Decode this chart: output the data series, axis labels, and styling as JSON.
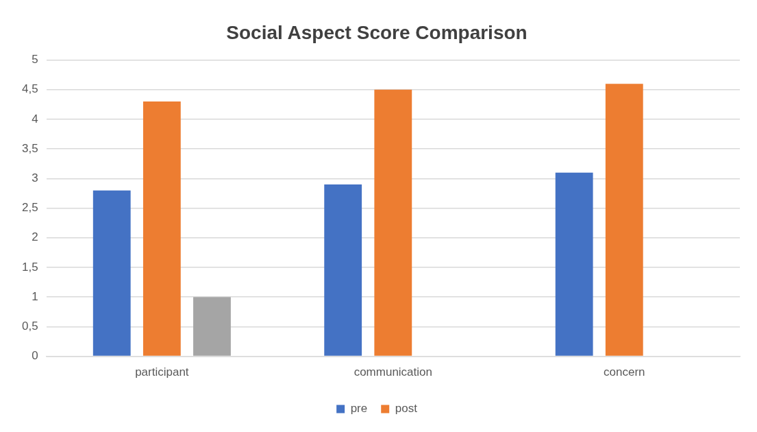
{
  "chart_data": {
    "type": "bar",
    "title": "Social Aspect Score Comparison",
    "categories": [
      "participant",
      "communication",
      "concern"
    ],
    "series": [
      {
        "name": "pre",
        "color": "#4472c4",
        "values": [
          2.8,
          2.9,
          3.1
        ]
      },
      {
        "name": "post",
        "color": "#ed7d31",
        "values": [
          4.3,
          4.5,
          4.6
        ]
      },
      {
        "color": "#a5a5a5",
        "values": [
          1,
          null,
          null
        ]
      }
    ],
    "ylim": [
      0,
      5
    ],
    "yticks": [
      0,
      {
        "value": 0.5,
        "label": "0,5"
      },
      1,
      {
        "value": 1.5,
        "label": "1,5"
      },
      2,
      {
        "value": 2.5,
        "label": "2,5"
      },
      3,
      {
        "value": 3.5,
        "label": "3,5"
      },
      4,
      {
        "value": 4.5,
        "label": "4,5"
      },
      5
    ],
    "grid": "y",
    "legend": "bottom"
  }
}
